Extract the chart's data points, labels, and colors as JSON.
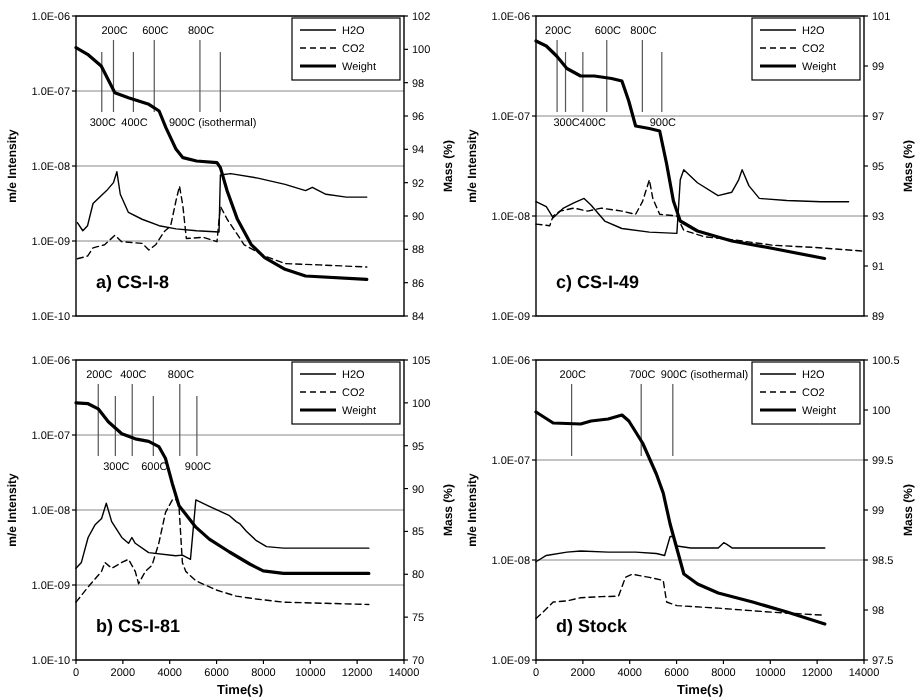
{
  "chart_data": [
    {
      "type": "line",
      "ylabel": "m/e Intensity",
      "y2label": "Mass (%)",
      "log": "y",
      "grid": "y",
      "legend": "top right",
      "xlim": [
        0,
        14000
      ],
      "ylim": [
        1e-10,
        1e-06
      ],
      "yticks": [
        {
          "value": 1e-10,
          "label": "1.0E-10"
        },
        {
          "value": 1e-09,
          "label": "1.0E-09"
        },
        {
          "value": 1e-08,
          "label": "1.0E-08"
        },
        {
          "value": 1e-07,
          "label": "1.0E-07"
        },
        {
          "value": 1e-06,
          "label": "1.0E-06"
        }
      ],
      "y2lim": [
        84,
        102
      ],
      "y2ticks": [
        84,
        86,
        88,
        90,
        92,
        94,
        96,
        98,
        100,
        102
      ],
      "series": [
        {
          "name": "H2O",
          "color": "#000000",
          "line_style": "solid",
          "x": [
            58,
            291,
            494,
            727,
            1017,
            1308,
            1599,
            1744,
            1890,
            2238,
            2820,
            3547,
            4273,
            5145,
            6105,
            6163,
            6599,
            7762,
            8924,
            9797,
            10087,
            10669,
            11541,
            12413
          ],
          "values": [
            1.76e-09,
            1.37e-09,
            1.6e-09,
            3.16e-09,
            3.85e-09,
            4.7e-09,
            6e-09,
            8.4e-09,
            4.2e-09,
            2.4e-09,
            1.95e-09,
            1.6e-09,
            1.45e-09,
            1.37e-09,
            1.32e-09,
            7.6e-09,
            7.9e-09,
            6.9e-09,
            5.7e-09,
            4.7e-09,
            5.2e-09,
            4.2e-09,
            3.85e-09,
            3.85e-09
          ]
        },
        {
          "name": "CO2",
          "color": "#000000",
          "line_style": "dashed",
          "x": [
            58,
            494,
            727,
            1221,
            1657,
            1948,
            2820,
            3110,
            3401,
            3750,
            4041,
            4273,
            4419,
            4564,
            4709,
            5436,
            6017,
            6163,
            6453,
            7180,
            8052,
            8924,
            10378,
            12413
          ],
          "values": [
            5.8e-10,
            6.3e-10,
            8.1e-10,
            8.9e-10,
            1.19e-09,
            9.8e-10,
            9.3e-10,
            7.6e-10,
            8.9e-10,
            1.32e-09,
            1.6e-09,
            3.5e-09,
            5.4e-09,
            2.9e-09,
            1.08e-09,
            1.12e-09,
            9.8e-10,
            2.9e-09,
            1.95e-09,
            8.9e-10,
            6.3e-10,
            5e-10,
            4.8e-10,
            4.5e-10
          ]
        },
        {
          "name": "Weight",
          "color": "#000000",
          "line_style": "solid",
          "axis": "y2",
          "x": [
            0,
            494,
            1076,
            1512,
            1657,
            2238,
            3110,
            3547,
            3837,
            4273,
            4564,
            5145,
            6017,
            6163,
            6453,
            6890,
            7471,
            8052,
            8924,
            9797,
            12413
          ],
          "values": [
            100.1,
            99.7,
            99.0,
            97.8,
            97.4,
            97.1,
            96.7,
            96.3,
            95.3,
            94.0,
            93.5,
            93.3,
            93.2,
            92.9,
            91.5,
            89.8,
            88.3,
            87.5,
            86.8,
            86.4,
            86.2
          ]
        }
      ],
      "ref_lines": [
        {
          "axis": "x",
          "value": 1600,
          "label": "200C"
        },
        {
          "axis": "x",
          "value": 1100,
          "label": "300C"
        },
        {
          "axis": "x",
          "value": 2450,
          "label": "400C"
        },
        {
          "axis": "x",
          "value": 3340,
          "label": "600C"
        },
        {
          "axis": "x",
          "value": 5290,
          "label": "800C"
        },
        {
          "axis": "x",
          "value": 6160,
          "label": "900C (isothermal)"
        }
      ],
      "annotations": [
        "a) CS-I-8"
      ]
    },
    {
      "type": "line",
      "ylabel": "m/e Intensity",
      "y2label": "Mass (%)",
      "log": "y",
      "grid": "y",
      "legend": "top right",
      "xlim": [
        0,
        14000
      ],
      "ylim": [
        1e-09,
        1e-06
      ],
      "yticks": [
        {
          "value": 1e-09,
          "label": "1.0E-09"
        },
        {
          "value": 1e-08,
          "label": "1.0E-08"
        },
        {
          "value": 1e-07,
          "label": "1.0E-07"
        },
        {
          "value": 1e-06,
          "label": "1.0E-06"
        }
      ],
      "y2lim": [
        89,
        101
      ],
      "y2ticks": [
        89,
        91,
        93,
        95,
        97,
        99,
        101
      ],
      "series": [
        {
          "name": "H2O",
          "color": "#000000",
          "line_style": "solid",
          "x": [
            0,
            440,
            733,
            1173,
            1613,
            2053,
            2346,
            2933,
            3666,
            4839,
            6012,
            6158,
            6305,
            6891,
            7771,
            8358,
            8651,
            8798,
            9091,
            9531,
            10704,
            12170,
            13343
          ],
          "values": [
            1.39e-08,
            1.24e-08,
            9.6e-09,
            1.2e-08,
            1.35e-08,
            1.5e-08,
            1.29e-08,
            8.9e-09,
            7.5e-09,
            6.9e-09,
            6.7e-09,
            2.3e-08,
            2.9e-08,
            2.15e-08,
            1.6e-08,
            1.73e-08,
            2.3e-08,
            2.9e-08,
            2e-08,
            1.5e-08,
            1.43e-08,
            1.39e-08,
            1.39e-08
          ]
        },
        {
          "name": "CO2",
          "color": "#000000",
          "line_style": "dashed",
          "x": [
            0,
            587,
            733,
            1026,
            1613,
            2199,
            2786,
            3666,
            4252,
            4545,
            4839,
            4985,
            5279,
            6012,
            6305,
            7185,
            8358,
            10117,
            11877,
            13988
          ],
          "values": [
            8.3e-09,
            8e-09,
            1e-08,
            1.12e-08,
            1.2e-08,
            1.12e-08,
            1.2e-08,
            1.12e-08,
            1.04e-08,
            1.39e-08,
            2.3e-08,
            1.5e-08,
            1.04e-08,
            1e-08,
            7.2e-09,
            6.2e-09,
            5.8e-09,
            5.1e-09,
            4.85e-09,
            4.45e-09
          ]
        },
        {
          "name": "Weight",
          "color": "#000000",
          "line_style": "solid",
          "axis": "y2",
          "x": [
            0,
            440,
            880,
            1320,
            1906,
            2493,
            3226,
            3666,
            3959,
            4252,
            4839,
            5279,
            5572,
            5865,
            6158,
            6891,
            8358,
            10117,
            12317
          ],
          "values": [
            100.0,
            99.8,
            99.4,
            98.9,
            98.6,
            98.6,
            98.5,
            98.4,
            97.6,
            96.6,
            96.5,
            96.4,
            95.1,
            93.6,
            92.8,
            92.4,
            92.0,
            91.7,
            91.3
          ]
        }
      ],
      "ref_lines": [
        {
          "axis": "x",
          "value": 900,
          "label": "200C"
        },
        {
          "axis": "x",
          "value": 1260,
          "label": "300C"
        },
        {
          "axis": "x",
          "value": 2000,
          "label": "400C"
        },
        {
          "axis": "x",
          "value": 3020,
          "label": "600C"
        },
        {
          "axis": "x",
          "value": 4540,
          "label": "800C"
        },
        {
          "axis": "x",
          "value": 5370,
          "label": "900C"
        }
      ],
      "annotations": [
        "c) CS-I-49"
      ]
    },
    {
      "type": "line",
      "xlabel": "Time(s)",
      "ylabel": "m/e Intensity",
      "y2label": "Mass (%)",
      "log": "y",
      "grid": "y",
      "legend": "top right",
      "xlim": [
        0,
        14000
      ],
      "xticks": [
        0,
        2000,
        4000,
        6000,
        8000,
        10000,
        12000,
        14000
      ],
      "ylim": [
        1e-10,
        1e-06
      ],
      "yticks": [
        {
          "value": 1e-10,
          "label": "1.0E-10"
        },
        {
          "value": 1e-09,
          "label": "1.0E-09"
        },
        {
          "value": 1e-08,
          "label": "1.0E-08"
        },
        {
          "value": 1e-07,
          "label": "1.0E-07"
        },
        {
          "value": 1e-06,
          "label": "1.0E-06"
        }
      ],
      "y2lim": [
        70,
        105
      ],
      "y2ticks": [
        70,
        75,
        80,
        85,
        90,
        95,
        100,
        105
      ],
      "series": [
        {
          "name": "H2O",
          "color": "#000000",
          "line_style": "solid",
          "x": [
            0,
            230,
            517,
            805,
            1092,
            1293,
            1523,
            1954,
            2241,
            2385,
            2529,
            3103,
            4253,
            4540,
            4885,
            5115,
            5690,
            6552,
            6839,
            6983,
            7270,
            7701,
            8132,
            8851,
            10287,
            12500
          ],
          "values": [
            1.67e-09,
            2e-09,
            4.3e-09,
            6.3e-09,
            7.7e-09,
            1.23e-08,
            7e-09,
            4.3e-09,
            3.6e-09,
            4.3e-09,
            3.6e-09,
            2.7e-09,
            2.45e-09,
            2.5e-09,
            2.2e-09,
            1.36e-08,
            1.12e-08,
            8.4e-09,
            7e-09,
            6.6e-09,
            5.2e-09,
            3.9e-09,
            3.25e-09,
            3.1e-09,
            3.1e-09,
            3.1e-09
          ]
        },
        {
          "name": "CO2",
          "color": "#000000",
          "line_style": "dashed",
          "x": [
            0,
            517,
            1092,
            1236,
            1523,
            1954,
            2241,
            2529,
            2672,
            2960,
            3247,
            3534,
            3822,
            4109,
            4253,
            4397,
            4540,
            4684,
            5115,
            5977,
            6839,
            7701,
            8851,
            12500
          ],
          "values": [
            5.9e-10,
            9.4e-10,
            1.52e-09,
            2e-09,
            1.67e-09,
            2e-09,
            2.2e-09,
            1.52e-09,
            1.04e-09,
            1.52e-09,
            1.84e-09,
            3.6e-09,
            9.3e-09,
            1.36e-08,
            1.41e-08,
            1.12e-08,
            2e-09,
            1.52e-09,
            1.14e-09,
            8.6e-10,
            7.1e-10,
            6.5e-10,
            5.9e-10,
            5.5e-10
          ]
        },
        {
          "name": "Weight",
          "color": "#000000",
          "line_style": "solid",
          "axis": "y2",
          "x": [
            0,
            517,
            948,
            1379,
            1954,
            2529,
            3103,
            3534,
            3822,
            4109,
            4397,
            4684,
            5115,
            5690,
            6552,
            7414,
            7989,
            8851,
            12500
          ],
          "values": [
            100.0,
            99.9,
            99.3,
            97.8,
            96.4,
            95.8,
            95.5,
            94.9,
            93.5,
            90.6,
            88.0,
            87.0,
            85.5,
            84.1,
            82.6,
            81.2,
            80.4,
            80.1,
            80.1
          ]
        }
      ],
      "ref_lines": [
        {
          "axis": "x",
          "value": 950,
          "label": "200C"
        },
        {
          "axis": "x",
          "value": 1680,
          "label": "300C"
        },
        {
          "axis": "x",
          "value": 2400,
          "label": "400C"
        },
        {
          "axis": "x",
          "value": 3300,
          "label": "600C"
        },
        {
          "axis": "x",
          "value": 4430,
          "label": "800C"
        },
        {
          "axis": "x",
          "value": 5160,
          "label": "900C"
        }
      ],
      "annotations": [
        "b) CS-I-81"
      ]
    },
    {
      "type": "line",
      "xlabel": "Time(s)",
      "ylabel": "m/e Intensity",
      "y2label": "Mass (%)",
      "log": "y",
      "grid": "y",
      "legend": "top right",
      "xlim": [
        0,
        14000
      ],
      "xticks": [
        0,
        2000,
        4000,
        6000,
        8000,
        10000,
        12000,
        14000
      ],
      "ylim": [
        1e-09,
        1e-06
      ],
      "yticks": [
        {
          "value": 1e-09,
          "label": "1.0E-09"
        },
        {
          "value": 1e-08,
          "label": "1.0E-08"
        },
        {
          "value": 1e-07,
          "label": "1.0E-07"
        },
        {
          "value": 1e-06,
          "label": "1.0E-06"
        }
      ],
      "y2lim": [
        97.5,
        100.5
      ],
      "y2ticks": [
        97.5,
        98,
        98.5,
        99,
        99.5,
        100,
        100.5
      ],
      "series": [
        {
          "name": "H2O",
          "color": "#000000",
          "line_style": "solid",
          "x": [
            0,
            440,
            1321,
            1908,
            3082,
            4256,
            5137,
            5489,
            5724,
            5871,
            6017,
            6604,
            7778,
            8013,
            8131,
            8366,
            12328
          ],
          "values": [
            9.6e-09,
            1.11e-08,
            1.2e-08,
            1.23e-08,
            1.2e-08,
            1.2e-08,
            1.16e-08,
            1.11e-08,
            1.72e-08,
            1.72e-08,
            1.38e-08,
            1.32e-08,
            1.32e-08,
            1.49e-08,
            1.44e-08,
            1.32e-08,
            1.32e-08
          ]
        },
        {
          "name": "CO2",
          "color": "#000000",
          "line_style": "dashed",
          "x": [
            0,
            294,
            734,
            1321,
            1908,
            2788,
            3522,
            3816,
            4109,
            4843,
            5430,
            5577,
            6017,
            7778,
            10126,
            12328
          ],
          "values": [
            2.6e-09,
            3e-09,
            3.8e-09,
            3.9e-09,
            4.2e-09,
            4.3e-09,
            4.35e-09,
            6.7e-09,
            7.2e-09,
            6.7e-09,
            6.25e-09,
            3.8e-09,
            3.5e-09,
            3.3e-09,
            3e-09,
            2.8e-09
          ]
        },
        {
          "name": "Weight",
          "color": "#000000",
          "line_style": "solid",
          "axis": "y2",
          "x": [
            0,
            734,
            1908,
            2348,
            3082,
            3669,
            3963,
            4549,
            5137,
            5430,
            5724,
            6017,
            6311,
            6898,
            7778,
            9246,
            10714,
            12328
          ],
          "values": [
            99.98,
            99.87,
            99.86,
            99.89,
            99.91,
            99.95,
            99.89,
            99.67,
            99.36,
            99.17,
            98.86,
            98.61,
            98.36,
            98.26,
            98.17,
            98.08,
            97.98,
            97.86
          ]
        }
      ],
      "ref_lines": [
        {
          "axis": "x",
          "value": 1520,
          "label": "200C"
        },
        {
          "axis": "x",
          "value": 4490,
          "label": "700C"
        },
        {
          "axis": "x",
          "value": 5840,
          "label": "900C (isothermal)"
        }
      ],
      "annotations": [
        "d) Stock"
      ]
    }
  ]
}
